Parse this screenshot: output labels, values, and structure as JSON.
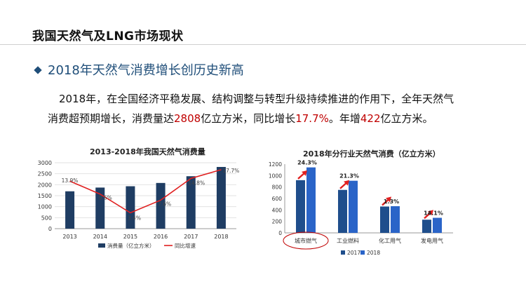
{
  "header": {
    "title": "我国天然气及LNG市场现状"
  },
  "section": {
    "heading": "2018年天然气消费增长创历史新高"
  },
  "paragraph": {
    "p1": "2018年，在全国经济平稳发展、结构调整与转型升级持续推进的作用下，全年天然气",
    "p2": "消费超预期增长，消费量达",
    "v1": "2808",
    "p3": "亿立方米，同比增长",
    "v2": "17.7%",
    "p4": "。年增",
    "v3": "422",
    "p5": "亿立方米。"
  },
  "colors": {
    "bar_dark": "#1f3d63",
    "bar_2017": "#1f4e8c",
    "bar_2018": "#2a64c8",
    "line": "#e02020",
    "highlight": "#c00000",
    "heading": "#1f4e79"
  },
  "chart_data": [
    {
      "type": "bar",
      "title": "2013-2018年我国天然气消费量",
      "categories": [
        "2013",
        "2014",
        "2015",
        "2016",
        "2017",
        "2018"
      ],
      "series": [
        {
          "name": "消费量（亿立方米）",
          "values": [
            1700,
            1870,
            1930,
            2080,
            2386,
            2808
          ]
        }
      ],
      "line_series": {
        "name": "同比增速",
        "values": [
          13.9,
          9.6,
          3.4,
          7.6,
          14.8,
          17.7
        ],
        "labels": [
          "13.9%",
          "9.6%",
          "3.4%",
          "7.6%",
          "14.8%",
          "17.7%"
        ]
      },
      "yticks": [
        "0",
        "500",
        "1000",
        "1500",
        "2000",
        "2500",
        "3000"
      ],
      "ylim": [
        0,
        3000
      ],
      "legend": "bottom"
    },
    {
      "type": "bar",
      "title": "2018年分行业天然气消费（亿立方米）",
      "categories": [
        "城市燃气",
        "工业燃料",
        "化工用气",
        "发电用气"
      ],
      "series": [
        {
          "name": "2017",
          "values": [
            920,
            750,
            460,
            230
          ]
        },
        {
          "name": "2018",
          "values": [
            1143,
            910,
            466,
            263
          ]
        }
      ],
      "growth_labels": [
        "24.3%",
        "21.3%",
        "1.3%",
        "14.1%"
      ],
      "yticks": [
        "0",
        "200",
        "400",
        "600",
        "800",
        "1000",
        "1200"
      ],
      "ylim": [
        0,
        1200
      ],
      "legend": "bottom",
      "highlighted_category": "城市燃气"
    }
  ]
}
